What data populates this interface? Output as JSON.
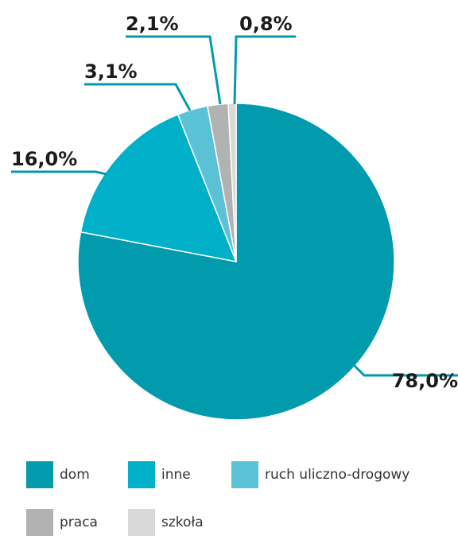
{
  "chart_data": {
    "type": "pie",
    "slices": [
      {
        "label": "dom",
        "value": 78.0,
        "value_label": "78,0%",
        "color": "#029aad"
      },
      {
        "label": "inne",
        "value": 16.0,
        "value_label": "16,0%",
        "color": "#00b0c8"
      },
      {
        "label": "ruch uliczno-drogowy",
        "value": 3.1,
        "value_label": "3,1%",
        "color": "#5bc2d6"
      },
      {
        "label": "praca",
        "value": 2.1,
        "value_label": "2,1%",
        "color": "#b2b2b2"
      },
      {
        "label": "szkoła",
        "value": 0.8,
        "value_label": "0,8%",
        "color": "#d9d9d9"
      }
    ],
    "start_direction": "top",
    "order": "clockwise",
    "leader_line_color": "#029aad",
    "legend": {
      "placement": "bottom"
    }
  }
}
